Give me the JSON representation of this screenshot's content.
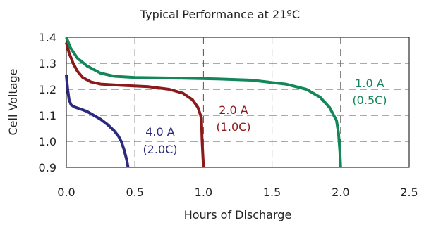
{
  "chart_data": {
    "type": "line",
    "title": "Typical Performance at 21ºC",
    "xlabel": "Hours of Discharge",
    "ylabel": "Cell Voltage",
    "xlim": [
      0,
      2.5
    ],
    "ylim": [
      0.9,
      1.4
    ],
    "xticks": [
      "0.0",
      "0.5",
      "1.0",
      "1.5",
      "2.0",
      "2.5"
    ],
    "yticks": [
      "0.9",
      "1.0",
      "1.1",
      "1.2",
      "1.3",
      "1.4"
    ],
    "grid": true,
    "series": [
      {
        "name": "4.0 A",
        "note": "(2.0C)",
        "color": "#2b2a7e",
        "points": [
          [
            0.0,
            1.255
          ],
          [
            0.01,
            1.2
          ],
          [
            0.02,
            1.16
          ],
          [
            0.035,
            1.14
          ],
          [
            0.06,
            1.132
          ],
          [
            0.1,
            1.125
          ],
          [
            0.15,
            1.115
          ],
          [
            0.2,
            1.1
          ],
          [
            0.25,
            1.085
          ],
          [
            0.3,
            1.065
          ],
          [
            0.35,
            1.04
          ],
          [
            0.38,
            1.02
          ],
          [
            0.4,
            1.0
          ],
          [
            0.42,
            0.97
          ],
          [
            0.44,
            0.93
          ],
          [
            0.45,
            0.9
          ]
        ]
      },
      {
        "name": "2.0 A",
        "note": "(1.0C)",
        "color": "#8b1a1a",
        "points": [
          [
            0.0,
            1.38
          ],
          [
            0.02,
            1.34
          ],
          [
            0.05,
            1.3
          ],
          [
            0.08,
            1.27
          ],
          [
            0.12,
            1.245
          ],
          [
            0.18,
            1.228
          ],
          [
            0.25,
            1.22
          ],
          [
            0.4,
            1.215
          ],
          [
            0.6,
            1.21
          ],
          [
            0.75,
            1.2
          ],
          [
            0.85,
            1.185
          ],
          [
            0.92,
            1.16
          ],
          [
            0.96,
            1.13
          ],
          [
            0.985,
            1.09
          ],
          [
            0.99,
            1.0
          ],
          [
            1.0,
            0.9
          ]
        ]
      },
      {
        "name": "1.0 A",
        "note": "(0.5C)",
        "color": "#14875a",
        "points": [
          [
            0.0,
            1.4
          ],
          [
            0.03,
            1.36
          ],
          [
            0.08,
            1.32
          ],
          [
            0.15,
            1.29
          ],
          [
            0.25,
            1.262
          ],
          [
            0.35,
            1.25
          ],
          [
            0.5,
            1.245
          ],
          [
            0.8,
            1.243
          ],
          [
            1.1,
            1.24
          ],
          [
            1.35,
            1.235
          ],
          [
            1.6,
            1.22
          ],
          [
            1.75,
            1.2
          ],
          [
            1.85,
            1.17
          ],
          [
            1.92,
            1.13
          ],
          [
            1.97,
            1.08
          ],
          [
            1.985,
            1.03
          ],
          [
            1.995,
            0.96
          ],
          [
            2.0,
            0.9
          ]
        ]
      }
    ]
  }
}
